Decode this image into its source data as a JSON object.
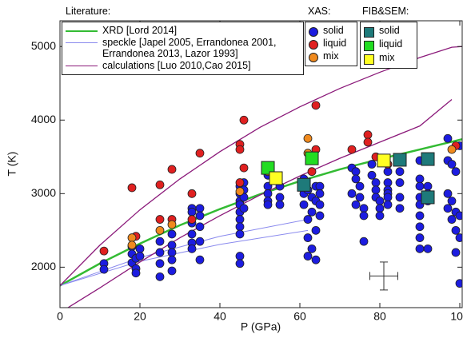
{
  "chart_data": {
    "type": "scatter",
    "x_label": "P (GPa)",
    "y_label": "T (K)",
    "xlim": [
      0,
      100.6
    ],
    "ylim": [
      1450,
      5350
    ],
    "xticks": [
      0,
      20,
      40,
      60,
      80,
      100
    ],
    "yticks": [
      2000,
      3000,
      4000,
      5000
    ],
    "legend": [
      {
        "title": "Literature:",
        "series": [
          {
            "name": "XRD [Lord 2014]",
            "marker": "line",
            "color": "#33bb33",
            "width": 2.5,
            "x": [
              0,
              10,
              20,
              30,
              40,
              50,
              60,
              70,
              80,
              90,
              100.6
            ],
            "values": [
              1750,
              2050,
              2320,
              2570,
              2790,
              2990,
              3170,
              3330,
              3470,
              3600,
              3740
            ]
          },
          {
            "name": "speckle [Japel 2005, Errandonea 2001, Errandonea 2013, Lazor 1993]",
            "marker": "line",
            "color": "#8a8aee",
            "width": 1,
            "x": [
              0,
              20,
              40,
              62,
              null,
              0,
              20,
              40,
              62
            ],
            "values": [
              1750,
              2130,
              2420,
              2650,
              null,
              1750,
              2080,
              2310,
              2500
            ]
          },
          {
            "name": "calculations [Luo 2010,Cao 2015]",
            "marker": "line",
            "color": "#8b1a7a",
            "width": 1.3,
            "x": [
              0,
              10,
              20,
              30,
              40,
              50,
              60,
              70,
              80,
              90,
              98,
              100.6,
              null,
              2,
              10,
              20,
              30,
              40,
              50,
              60,
              70,
              80,
              90,
              98
            ],
            "values": [
              1750,
              2300,
              2780,
              3200,
              3570,
              3900,
              4180,
              4430,
              4650,
              4850,
              4990,
              5000,
              null,
              1450,
              1720,
              2070,
              2400,
              2700,
              2980,
              3240,
              3480,
              3700,
              3920,
              4280
            ]
          }
        ]
      },
      {
        "title": "XAS:",
        "series": [
          {
            "name": "solid",
            "marker": "circle",
            "color": "#1c1ce0",
            "x": [
              11,
              11,
              18,
              18,
              18,
              19,
              19,
              19,
              20,
              20,
              25,
              25,
              25,
              25,
              28,
              28,
              28,
              28,
              28,
              33,
              33,
              33,
              33,
              33,
              33,
              35,
              35,
              35,
              35,
              35,
              45,
              45,
              45,
              45,
              45,
              45,
              45,
              45,
              45,
              45,
              46,
              46,
              46,
              46,
              52,
              52,
              52,
              52,
              52,
              55,
              55,
              55,
              61,
              61,
              61,
              62,
              62,
              62,
              62,
              63,
              63,
              63,
              64,
              64,
              64,
              64,
              65,
              65,
              65,
              65,
              73,
              73,
              74,
              74,
              74,
              75,
              75,
              76,
              76,
              76,
              78,
              78,
              79,
              79,
              79,
              80,
              80,
              80,
              82,
              82,
              82,
              82,
              82,
              82,
              85,
              85,
              85,
              85,
              85,
              90,
              90,
              90,
              90,
              90,
              90,
              90,
              90,
              90,
              92,
              92,
              92,
              92,
              97,
              97,
              97,
              98,
              98,
              98,
              99,
              99,
              99,
              99,
              100,
              100,
              100,
              97,
              100
            ],
            "values": [
              2050,
              1970,
              2280,
              2180,
              2060,
              2120,
              1980,
              1920,
              2250,
              2150,
              2350,
              2200,
              2050,
              1870,
              2450,
              2300,
              2200,
              2100,
              1950,
              2800,
              2750,
              2600,
              2450,
              2330,
              2250,
              2800,
              2700,
              2550,
              2350,
              2100,
              3100,
              3000,
              2900,
              2850,
              2750,
              2650,
              2550,
              2450,
              2150,
              2050,
              3150,
              3050,
              2950,
              2800,
              3250,
              3100,
              3000,
              2900,
              2850,
              3100,
              2950,
              2850,
              3200,
              3000,
              2850,
              2650,
              2400,
              2150,
              3050,
              2950,
              2750,
              2250,
              3100,
              2900,
              2500,
              2100,
              3100,
              3000,
              2850,
              2700,
              3350,
              3000,
              3300,
              3200,
              2850,
              3100,
              2950,
              2800,
              2700,
              2350,
              3400,
              3250,
              3150,
              3050,
              2950,
              2900,
              2800,
              2700,
              3300,
              3150,
              3050,
              3000,
              2950,
              2850,
              3450,
              3300,
              3150,
              2950,
              2800,
              3450,
              3200,
              3100,
              2950,
              2850,
              2700,
              2550,
              2400,
              2250,
              3100,
              3000,
              2900,
              2250,
              3450,
              3000,
              2800,
              3400,
              2900,
              2650,
              3300,
              2750,
              2500,
              2200,
              2700,
              2400,
              1780,
              3750,
              3650
            ]
          },
          {
            "name": "liquid",
            "marker": "circle",
            "color": "#e02020",
            "x": [
              11,
              18,
              19,
              25,
              25,
              28,
              28,
              33,
              33,
              35,
              45,
              45,
              45,
              46,
              46,
              52,
              63,
              64,
              64,
              73,
              77,
              77,
              79,
              82,
              99
            ],
            "values": [
              2220,
              3080,
              2420,
              3120,
              2650,
              3330,
              2650,
              3000,
              2650,
              3550,
              3670,
              3600,
              3150,
              4000,
              3350,
              3350,
              3300,
              4200,
              3600,
              3600,
              3800,
              3700,
              3500,
              3400,
              3650
            ]
          },
          {
            "name": "mix",
            "marker": "circle",
            "color": "#f08a1e",
            "x": [
              18,
              18,
              25,
              28,
              45,
              52,
              62,
              62,
              98
            ],
            "values": [
              2400,
              2300,
              2500,
              2580,
              3030,
              3300,
              3750,
              3550,
              3600
            ]
          }
        ]
      },
      {
        "title": "FIB&SEM:",
        "series": [
          {
            "name": "solid",
            "marker": "square",
            "color": "#1e7a7a",
            "x": [
              61,
              85,
              92,
              92
            ],
            "values": [
              3120,
              3460,
              3470,
              2950
            ]
          },
          {
            "name": "liquid",
            "marker": "square",
            "color": "#22dd22",
            "x": [
              52,
              63
            ],
            "values": [
              3350,
              3480
            ]
          },
          {
            "name": "mix",
            "marker": "square",
            "color": "#ffff22",
            "x": [
              54,
              81
            ],
            "values": [
              3210,
              3450
            ]
          }
        ]
      }
    ],
    "error_bar": {
      "x": 81,
      "y": 1880,
      "xerr": 3.5,
      "yerr": 190
    }
  }
}
